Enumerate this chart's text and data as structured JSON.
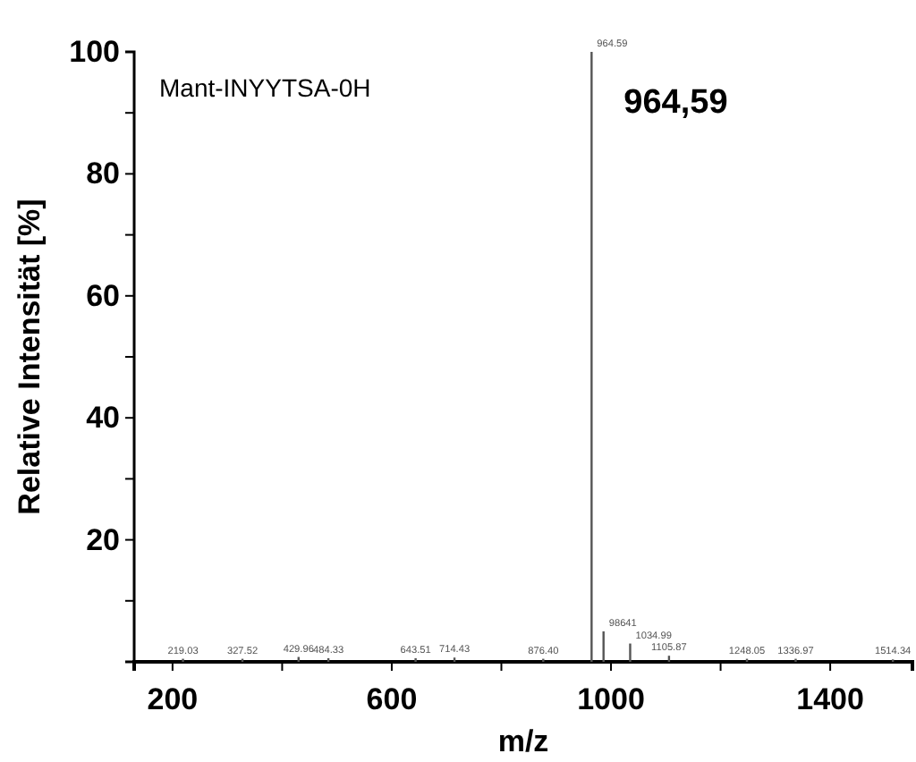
{
  "chart_data": {
    "type": "bar",
    "xlabel": "m/z",
    "ylabel": "Relative Intensität [%]",
    "x": [
      219.03,
      327.52,
      429.96,
      484.33,
      643.51,
      714.43,
      876.4,
      964.59,
      986.41,
      1034.99,
      1105.87,
      1248.05,
      1336.97,
      1514.34
    ],
    "values": [
      0.5,
      0.5,
      0.8,
      0.6,
      0.6,
      0.7,
      0.5,
      100,
      5,
      3,
      1,
      0.5,
      0.5,
      0.4
    ],
    "color": "#555555",
    "xlim": [
      130,
      1550
    ],
    "ylim": [
      0,
      100
    ],
    "xticks": [
      200,
      {
        "value": 400,
        "label": null
      },
      600,
      {
        "value": 800,
        "label": null
      },
      1000,
      {
        "value": 1200,
        "label": null
      },
      1400
    ],
    "yticks": [
      {
        "value": 10,
        "label": null
      },
      20,
      {
        "value": 30,
        "label": null
      },
      40,
      {
        "value": 50,
        "label": null
      },
      60,
      {
        "value": 70,
        "label": null
      },
      80,
      {
        "value": 90,
        "label": null
      },
      100
    ],
    "annotations": [
      "Mant-INYYTSA-0H",
      {
        "text": "964,59",
        "x": 964.59,
        "y": 100
      },
      {
        "text": "219.03",
        "x": 219.03,
        "y": 0.5
      },
      {
        "text": "327.52",
        "x": 327.52,
        "y": 0.5
      },
      {
        "text": "429.96",
        "x": 429.96,
        "y": 0.8
      },
      {
        "text": "484.33",
        "x": 484.33,
        "y": 0.6
      },
      {
        "text": "643.51",
        "x": 643.51,
        "y": 0.6
      },
      {
        "text": "714.43",
        "x": 714.43,
        "y": 0.7
      },
      {
        "text": "876.40",
        "x": 876.4,
        "y": 0.5
      },
      {
        "text": "964.59",
        "x": 964.59,
        "y": 100
      },
      {
        "text": "98641",
        "x": 986.41,
        "y": 5
      },
      {
        "text": "1034.99",
        "x": 1034.99,
        "y": 3
      },
      {
        "text": "1105.87",
        "x": 1105.87,
        "y": 1
      },
      {
        "text": "1248.05",
        "x": 1248.05,
        "y": 0.5
      },
      {
        "text": "1336.97",
        "x": 1336.97,
        "y": 0.5
      },
      {
        "text": "1514.34",
        "x": 1514.34,
        "y": 0.4
      }
    ],
    "grid": false
  }
}
